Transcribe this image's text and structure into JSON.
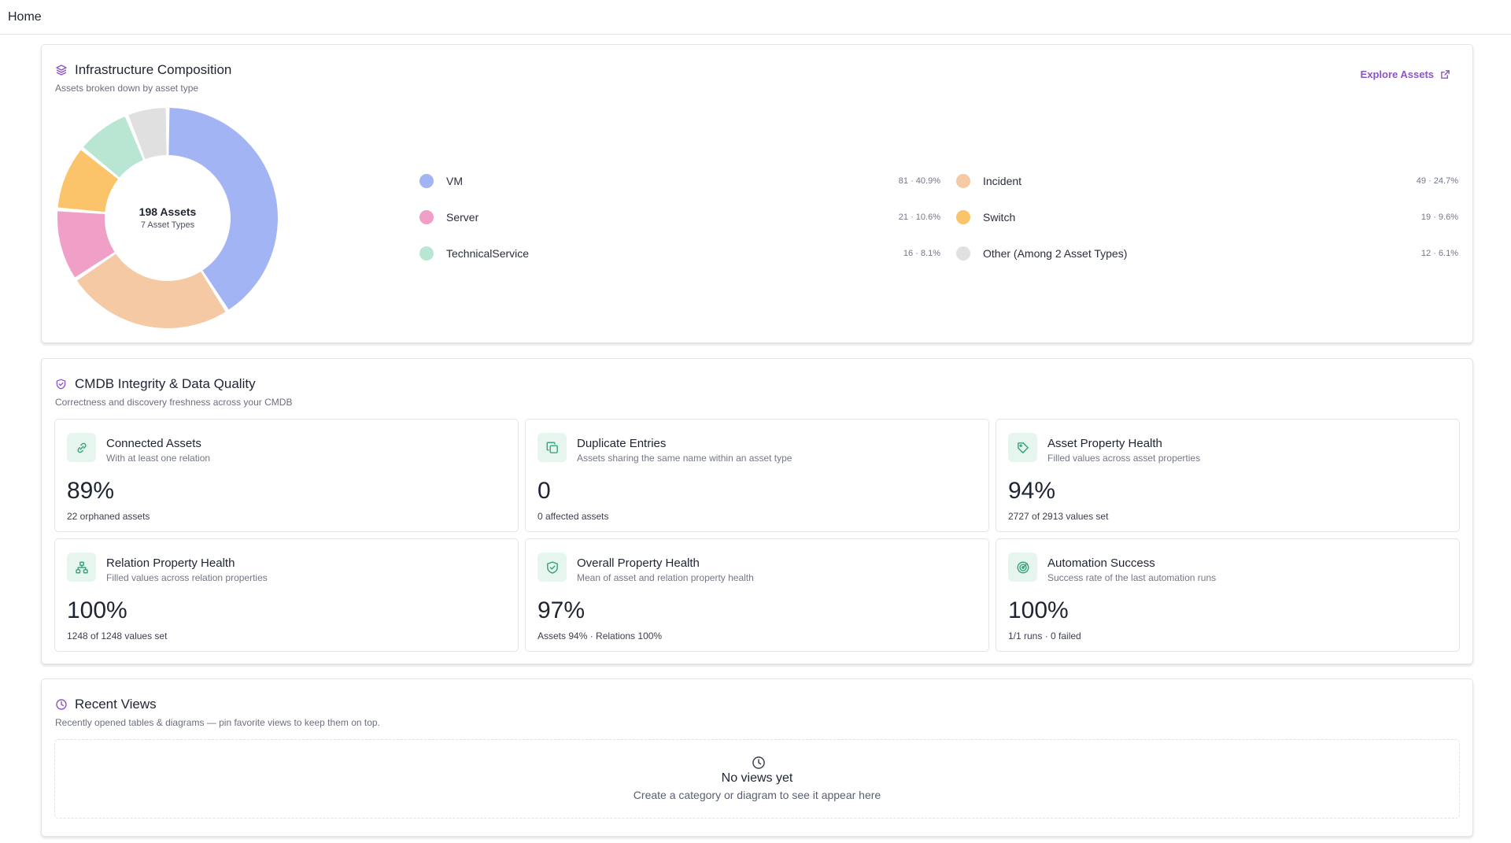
{
  "topbar": {
    "home": "Home"
  },
  "composition": {
    "title": "Infrastructure Composition",
    "subtitle": "Assets broken down by asset type",
    "explore_label": "Explore Assets",
    "center_title": "198 Assets",
    "center_sub": "7 Asset Types",
    "legend": [
      {
        "label": "VM",
        "value": "81 · 40.9%",
        "color": "#a3b4f5"
      },
      {
        "label": "Incident",
        "value": "49 · 24.7%",
        "color": "#f5c9a3"
      },
      {
        "label": "Server",
        "value": "21 · 10.6%",
        "color": "#f09fc6"
      },
      {
        "label": "Switch",
        "value": "19 · 9.6%",
        "color": "#fcc46a"
      },
      {
        "label": "TechnicalService",
        "value": "16 · 8.1%",
        "color": "#b8e6d2"
      },
      {
        "label": "Other (Among 2 Asset Types)",
        "value": "12 · 6.1%",
        "color": "#e0e0e0"
      }
    ]
  },
  "chart_data": {
    "type": "pie",
    "categories": [
      "VM",
      "Incident",
      "Server",
      "Switch",
      "TechnicalService",
      "Other (Among 2 Asset Types)"
    ],
    "values": [
      81,
      49,
      21,
      19,
      16,
      12
    ],
    "colors": [
      "#a3b4f5",
      "#f5c9a3",
      "#f09fc6",
      "#fcc46a",
      "#b8e6d2",
      "#e0e0e0"
    ],
    "title": "",
    "donut": true
  },
  "integrity": {
    "title": "CMDB Integrity & Data Quality",
    "subtitle": "Correctness and discovery freshness across your CMDB",
    "metrics": [
      {
        "icon": "link-icon",
        "title": "Connected Assets",
        "sub": "With at least one relation",
        "value": "89%",
        "note": "22 orphaned assets"
      },
      {
        "icon": "copy-icon",
        "title": "Duplicate Entries",
        "sub": "Assets sharing the same name within an asset type",
        "value": "0",
        "note": "0 affected assets"
      },
      {
        "icon": "tag-icon",
        "title": "Asset Property Health",
        "sub": "Filled values across asset properties",
        "value": "94%",
        "note": "2727 of 2913 values set"
      },
      {
        "icon": "network-icon",
        "title": "Relation Property Health",
        "sub": "Filled values across relation properties",
        "value": "100%",
        "note": "1248 of 1248 values set"
      },
      {
        "icon": "shield-check-icon",
        "title": "Overall Property Health",
        "sub": "Mean of asset and relation property health",
        "value": "97%",
        "note": "Assets 94% · Relations 100%"
      },
      {
        "icon": "radar-icon",
        "title": "Automation Success",
        "sub": "Success rate of the last automation runs",
        "value": "100%",
        "note": "1/1 runs · 0 failed"
      }
    ]
  },
  "recent": {
    "title": "Recent Views",
    "subtitle": "Recently opened tables & diagrams — pin favorite views to keep them on top.",
    "empty_title": "No views yet",
    "empty_sub": "Create a category or diagram to see it appear here"
  },
  "theme": {
    "accent": "#8b55c9",
    "green": "#3aa57a",
    "icon_bg": "#e6f6ee"
  }
}
